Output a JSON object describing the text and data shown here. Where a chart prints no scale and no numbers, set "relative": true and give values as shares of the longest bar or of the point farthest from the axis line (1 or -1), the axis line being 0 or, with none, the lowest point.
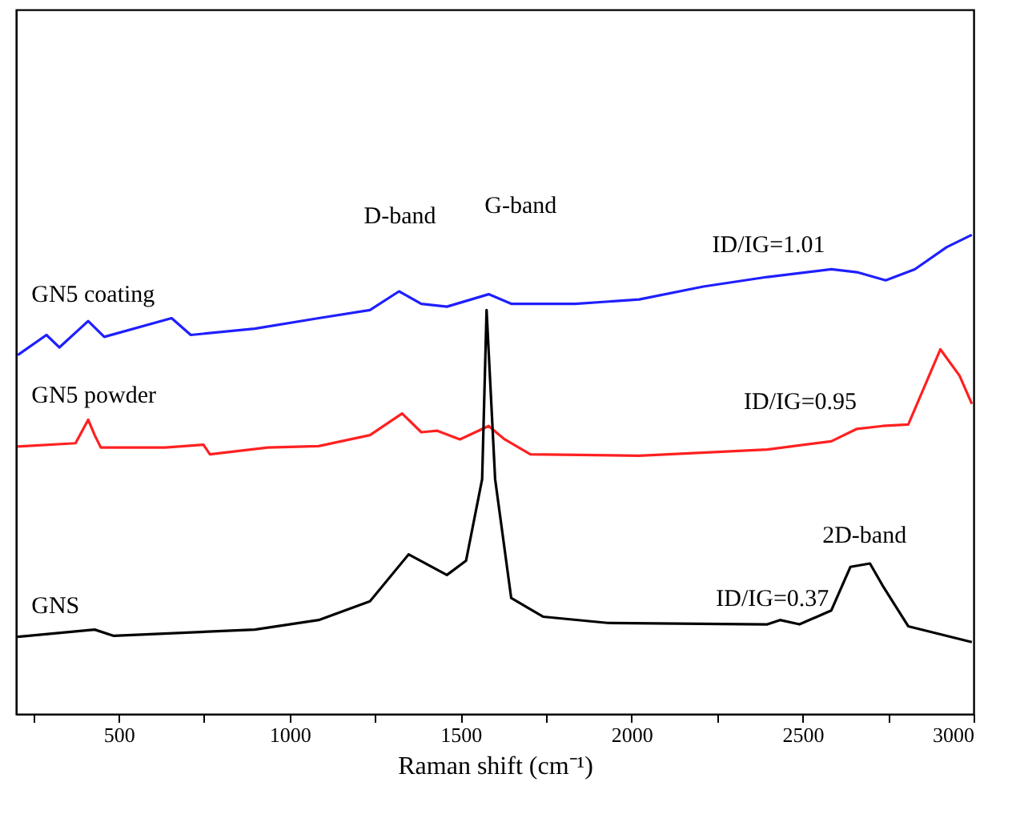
{
  "chart_data": {
    "type": "line",
    "relative": true,
    "xlabel": "Raman shift (cm⁻¹)",
    "xlim": [
      200,
      3000
    ],
    "xticks": [
      {
        "value": 250,
        "label": null
      },
      500,
      {
        "value": 750,
        "label": null
      },
      1000,
      {
        "value": 1250,
        "label": null
      },
      1500,
      {
        "value": 1750,
        "label": null
      },
      2000,
      {
        "value": 2250,
        "label": null
      },
      2500,
      {
        "value": 2750,
        "label": null
      },
      3000
    ],
    "tick_labels": "x",
    "grid": false,
    "legend": false,
    "marker": "none",
    "line_style": "solid",
    "series": [
      {
        "name": "GN5 coating",
        "color": "#1f1fff",
        "x": [
          205,
          289,
          327,
          411,
          458,
          655,
          711,
          898,
          1085,
          1235,
          1320,
          1385,
          1460,
          1582,
          1648,
          1835,
          2022,
          2210,
          2397,
          2584,
          2659,
          2743,
          2828,
          2921,
          2995
        ],
        "values": [
          0.749,
          0.791,
          0.765,
          0.82,
          0.787,
          0.826,
          0.791,
          0.804,
          0.826,
          0.843,
          0.882,
          0.856,
          0.85,
          0.876,
          0.856,
          0.856,
          0.865,
          0.892,
          0.912,
          0.928,
          0.922,
          0.905,
          0.928,
          0.974,
          1.0
        ]
      },
      {
        "name": "GN5 powder",
        "color": "#ff2020",
        "x": [
          205,
          374,
          411,
          430,
          448,
          636,
          748,
          767,
          936,
          1085,
          1235,
          1329,
          1385,
          1432,
          1498,
          1582,
          1629,
          1704,
          2022,
          2397,
          2584,
          2659,
          2734,
          2809,
          2903,
          2959,
          2995
        ],
        "values": [
          0.558,
          0.565,
          0.614,
          0.582,
          0.556,
          0.556,
          0.562,
          0.542,
          0.556,
          0.559,
          0.582,
          0.627,
          0.588,
          0.591,
          0.573,
          0.601,
          0.573,
          0.542,
          0.539,
          0.552,
          0.569,
          0.595,
          0.601,
          0.604,
          0.761,
          0.706,
          0.647
        ]
      },
      {
        "name": "GNS",
        "color": "#000000",
        "x": [
          205,
          430,
          486,
          898,
          1085,
          1235,
          1348,
          1460,
          1516,
          1563,
          1576,
          1601,
          1648,
          1741,
          1929,
          2397,
          2434,
          2491,
          2584,
          2640,
          2697,
          2734,
          2809,
          2995
        ],
        "values": [
          0.161,
          0.176,
          0.163,
          0.176,
          0.196,
          0.235,
          0.333,
          0.29,
          0.32,
          0.49,
          0.843,
          0.49,
          0.242,
          0.203,
          0.19,
          0.187,
          0.196,
          0.187,
          0.216,
          0.307,
          0.314,
          0.268,
          0.183,
          0.15
        ]
      }
    ],
    "annotations": [
      "D-band",
      "G-band",
      "2D-band",
      "ID/IG=1.01",
      "ID/IG=0.95",
      "ID/IG=0.37"
    ]
  }
}
